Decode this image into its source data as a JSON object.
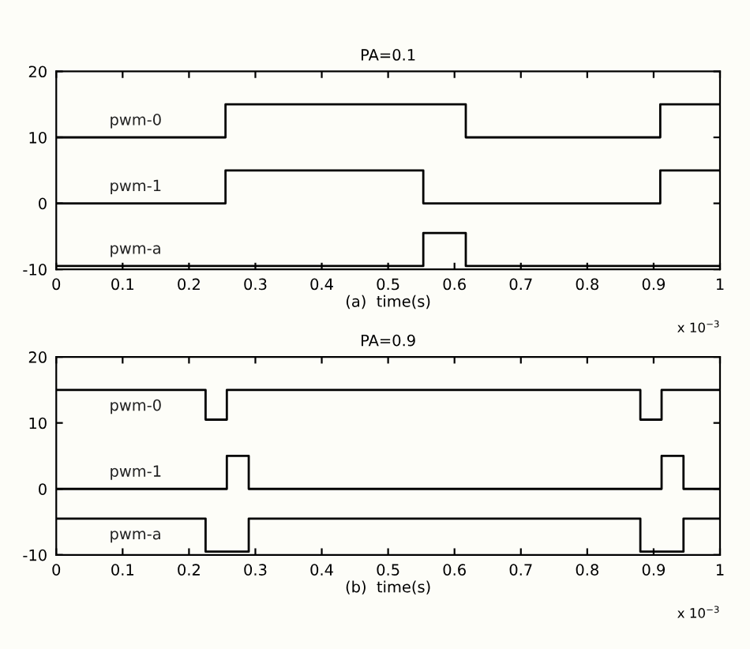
{
  "chart_data": [
    {
      "type": "step",
      "title": "PA=0.1",
      "xlabel": "(a)  time(s)",
      "xlim": [
        0,
        1
      ],
      "xticks": [
        0,
        0.1,
        0.2,
        0.3,
        0.4,
        0.5,
        0.6,
        0.7,
        0.8,
        0.9,
        1
      ],
      "ylim": [
        -10,
        20
      ],
      "yticks": [
        -10,
        0,
        10,
        20
      ],
      "grid": false,
      "legend": false,
      "annotations": [
        "x 10$^{−3}$"
      ],
      "series": [
        {
          "name": "pwm-0",
          "color": "#000000",
          "x": [
            0,
            0.255,
            0.617,
            0.91,
            1
          ],
          "values": [
            10,
            15,
            10,
            15,
            15
          ]
        },
        {
          "name": "pwm-1",
          "color": "#000000",
          "x": [
            0,
            0.255,
            0.553,
            0.91,
            1
          ],
          "values": [
            0,
            5,
            0,
            5,
            5
          ]
        },
        {
          "name": "pwm-a",
          "color": "#000000",
          "x": [
            0,
            0.553,
            0.617,
            1
          ],
          "values": [
            -9.5,
            -4.5,
            -9.5,
            -9.5
          ]
        }
      ]
    },
    {
      "type": "step",
      "title": "PA=0.9",
      "xlabel": "(b)  time(s)",
      "xlim": [
        0,
        1
      ],
      "xticks": [
        0,
        0.1,
        0.2,
        0.3,
        0.4,
        0.5,
        0.6,
        0.7,
        0.8,
        0.9,
        1
      ],
      "ylim": [
        -10,
        20
      ],
      "yticks": [
        -10,
        0,
        10,
        20
      ],
      "grid": false,
      "legend": false,
      "annotations": [
        "x 10$^{−3}$"
      ],
      "series": [
        {
          "name": "pwm-0",
          "color": "#000000",
          "x": [
            0,
            0.225,
            0.257,
            0.88,
            0.912,
            1
          ],
          "values": [
            15,
            10.5,
            15,
            10.5,
            15,
            15
          ]
        },
        {
          "name": "pwm-1",
          "color": "#000000",
          "x": [
            0,
            0.257,
            0.29,
            0.912,
            0.945,
            1
          ],
          "values": [
            0,
            5,
            0,
            5,
            0,
            0
          ]
        },
        {
          "name": "pwm-a",
          "color": "#000000",
          "x": [
            0,
            0.225,
            0.29,
            0.88,
            0.945,
            1
          ],
          "values": [
            -4.5,
            -9.5,
            -4.5,
            -9.5,
            -4.5,
            -4.5
          ]
        }
      ]
    }
  ]
}
